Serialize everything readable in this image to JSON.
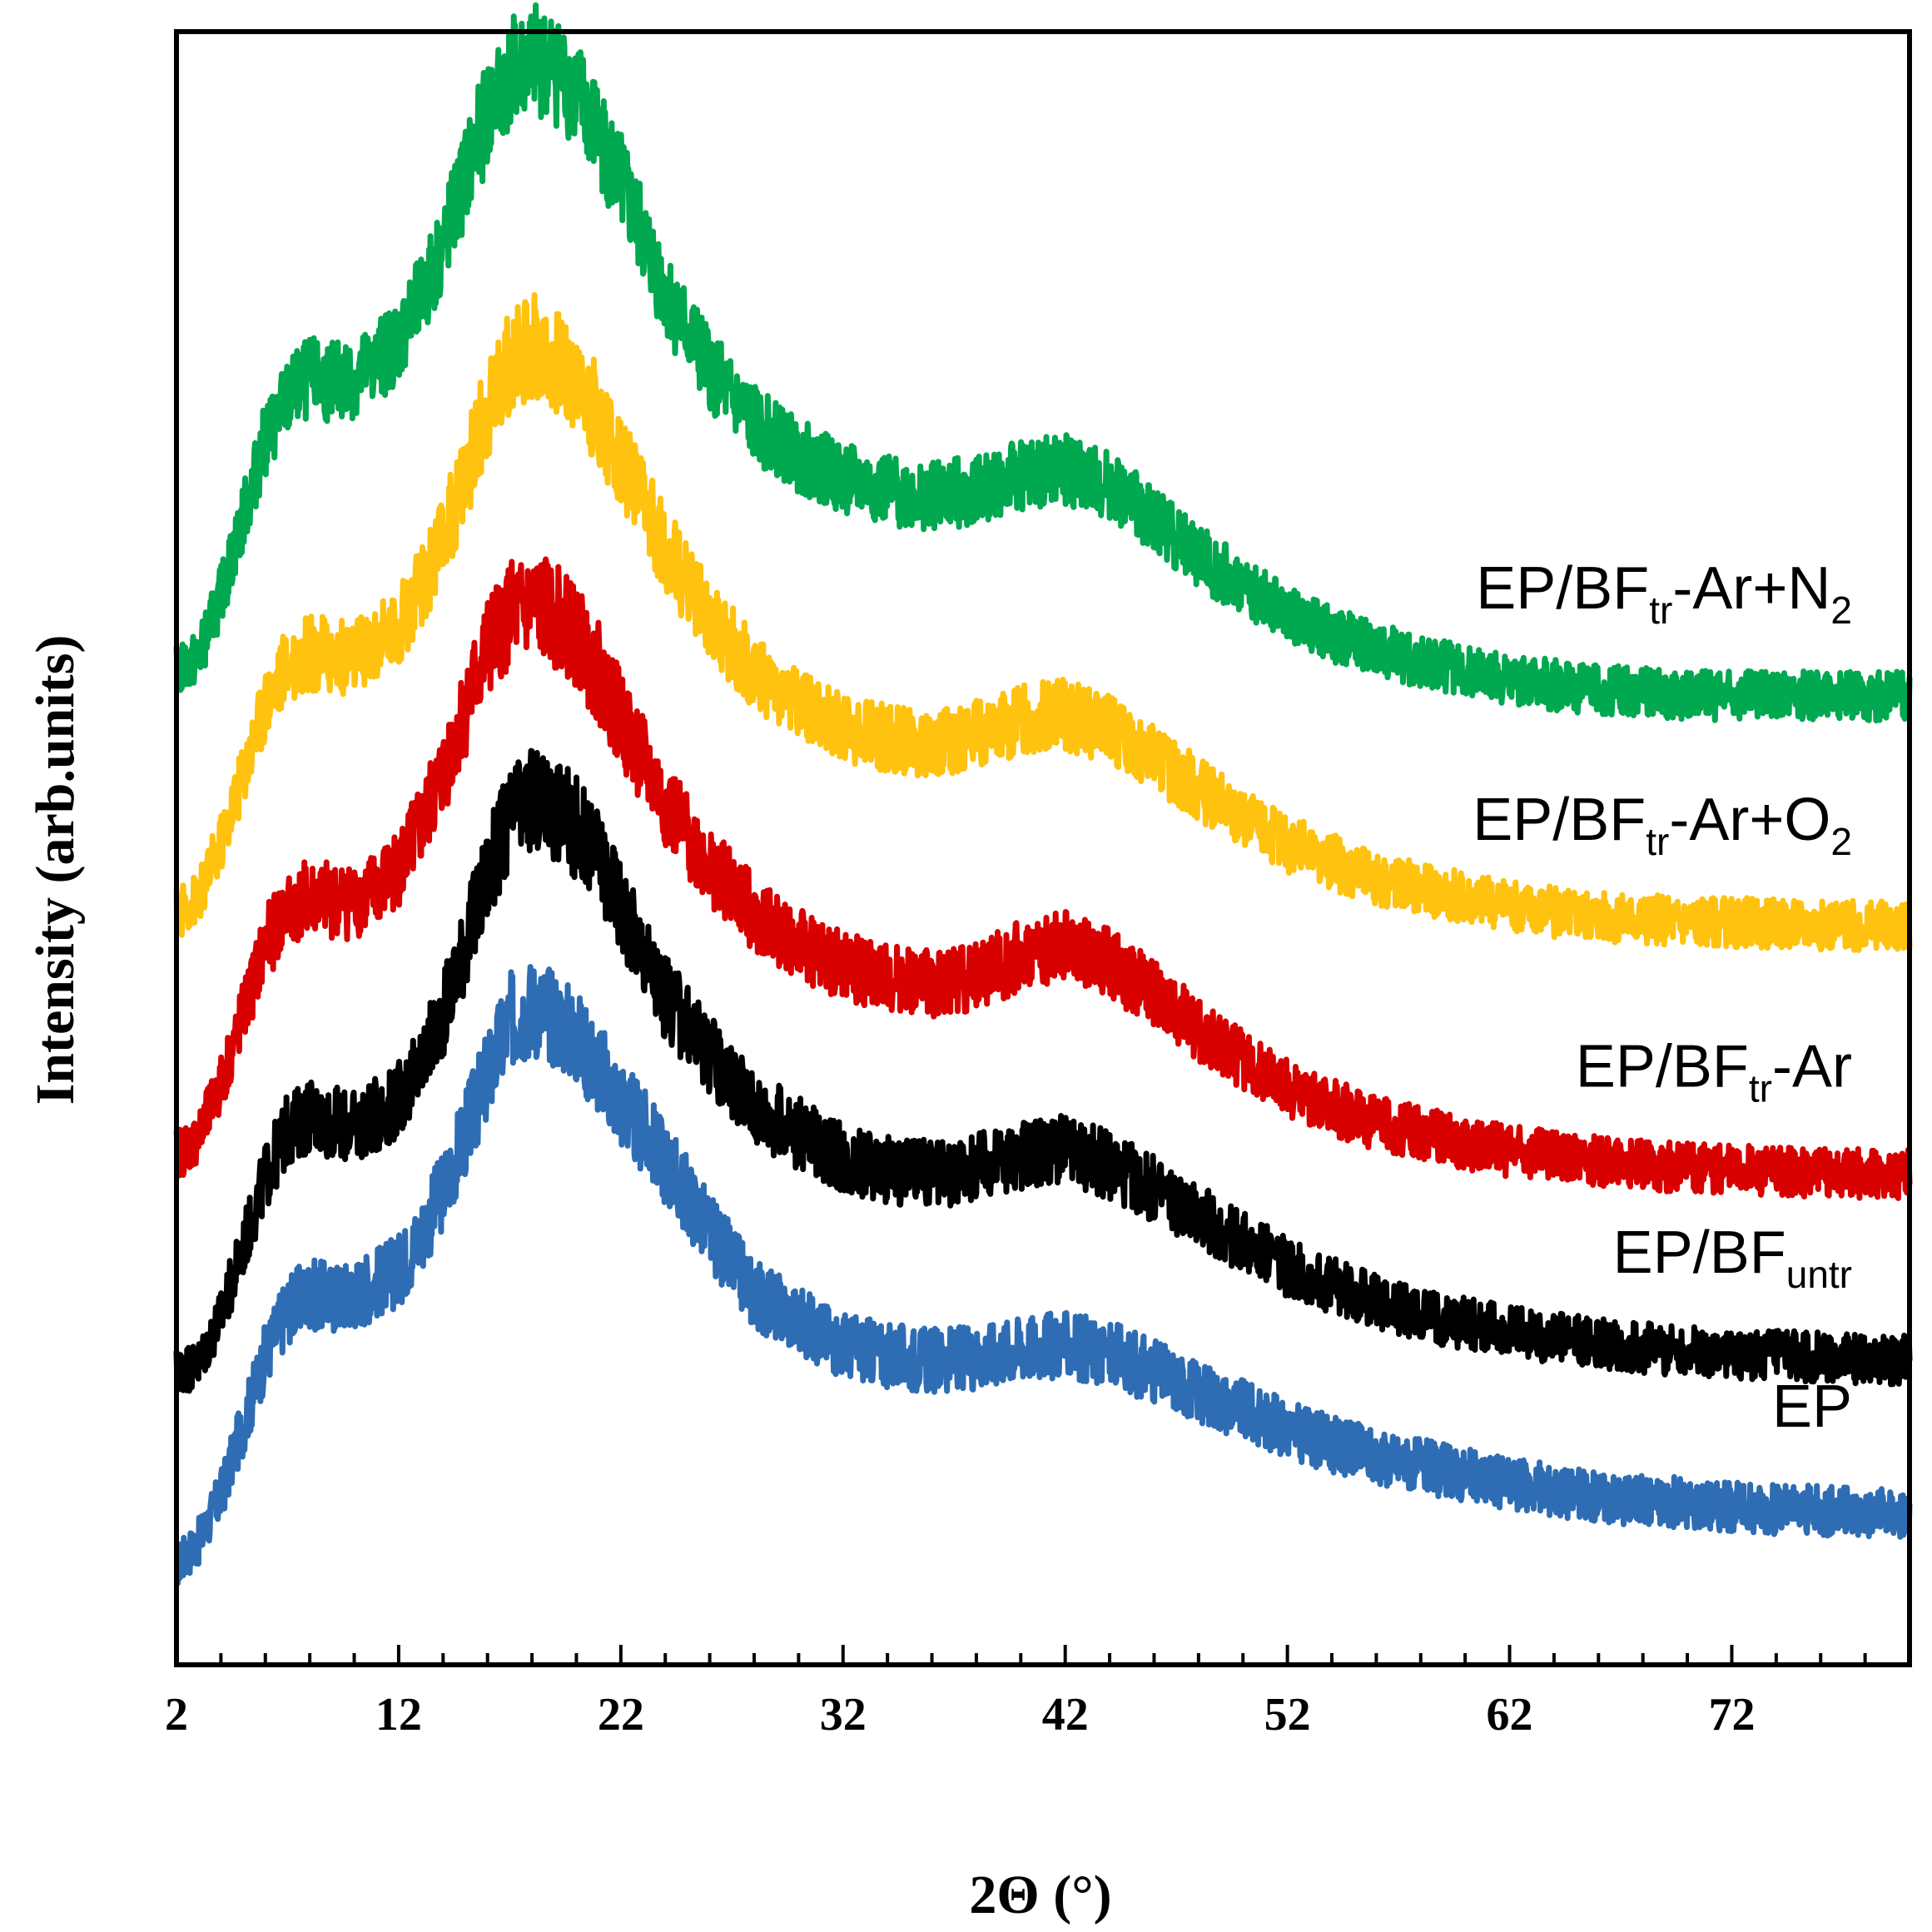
{
  "chart_data": {
    "type": "line",
    "title": "",
    "xlabel": "2Θ (°)",
    "ylabel": "Intensity (arb.units)",
    "xlim": [
      2,
      80
    ],
    "ylim": [
      0,
      1000
    ],
    "x_ticks": [
      2,
      12,
      22,
      32,
      42,
      52,
      62,
      72
    ],
    "x_tick_labels": [
      "2",
      "12",
      "22",
      "32",
      "42",
      "52",
      "62",
      "72"
    ],
    "y_ticks_shown": false,
    "series": [
      {
        "name": "EP",
        "label_main": "EP",
        "label_sub": "",
        "label_post": "",
        "label_sub2": "",
        "color": "#2e6db4",
        "x": [
          2,
          3,
          4,
          5,
          6,
          7,
          8,
          9,
          10,
          11,
          12,
          13,
          14,
          15,
          16,
          17,
          18,
          19,
          20,
          21,
          22,
          24,
          26,
          28,
          30,
          32,
          34,
          36,
          38,
          40,
          42,
          44,
          46,
          48,
          50,
          52,
          54,
          56,
          58,
          60,
          62,
          64,
          66,
          68,
          70,
          72,
          74,
          76,
          78,
          80
        ],
        "y": [
          40,
          55,
          85,
          130,
          175,
          205,
          215,
          212,
          215,
          222,
          230,
          252,
          282,
          318,
          355,
          390,
          400,
          393,
          380,
          360,
          338,
          300,
          255,
          215,
          198,
          182,
          175,
          172,
          174,
          180,
          182,
          176,
          165,
          152,
          140,
          128,
          118,
          110,
          104,
          98,
          93,
          88,
          84,
          82,
          80,
          78,
          76,
          75,
          74,
          73
        ]
      },
      {
        "name": "EP/BFuntr",
        "label_main": "EP/BF",
        "label_sub": "untr",
        "label_post": "",
        "label_sub2": "",
        "color": "#000000",
        "x": [
          2,
          3,
          4,
          5,
          6,
          7,
          8,
          9,
          10,
          11,
          12,
          13,
          14,
          15,
          16,
          17,
          18,
          19,
          20,
          21,
          22,
          24,
          26,
          28,
          30,
          32,
          34,
          36,
          38,
          40,
          42,
          44,
          46,
          48,
          50,
          52,
          54,
          56,
          58,
          60,
          62,
          64,
          66,
          68,
          70,
          72,
          74,
          76,
          78,
          80
        ],
        "y": [
          165,
          170,
          200,
          245,
          290,
          320,
          330,
          325,
          322,
          330,
          340,
          362,
          395,
          440,
          485,
          520,
          532,
          528,
          515,
          495,
          465,
          405,
          370,
          335,
          318,
          302,
          295,
          292,
          296,
          305,
          307,
          298,
          282,
          265,
          248,
          232,
          220,
          210,
          202,
          196,
          190,
          186,
          183,
          180,
          178,
          176,
          175,
          174,
          173,
          172
        ]
      },
      {
        "name": "EP/BFtr-Ar",
        "label_main": "EP/BF",
        "label_sub": "tr",
        "label_post": "-Ar",
        "label_sub2": "",
        "color": "#d90000",
        "x": [
          2,
          3,
          4,
          5,
          6,
          7,
          8,
          9,
          10,
          11,
          12,
          13,
          14,
          15,
          16,
          17,
          18,
          19,
          20,
          21,
          22,
          24,
          26,
          28,
          30,
          32,
          34,
          36,
          38,
          40,
          42,
          44,
          46,
          48,
          50,
          52,
          54,
          56,
          58,
          60,
          62,
          64,
          66,
          68,
          70,
          72,
          74,
          76,
          78,
          80
        ],
        "y": [
          305,
          315,
          350,
          395,
          440,
          462,
          470,
          468,
          468,
          475,
          490,
          515,
          550,
          592,
          630,
          652,
          658,
          652,
          638,
          615,
          585,
          530,
          490,
          460,
          440,
          425,
          418,
          415,
          420,
          432,
          438,
          428,
          408,
          385,
          365,
          348,
          335,
          325,
          318,
          312,
          307,
          303,
          300,
          298,
          296,
          295,
          294,
          293,
          292,
          292
        ]
      },
      {
        "name": "EP/BFtr-Ar+O2",
        "label_main": "EP/BF",
        "label_sub": "tr",
        "label_post": "-Ar+O",
        "label_sub2": "2",
        "color": "#ffc20e",
        "x": [
          2,
          3,
          4,
          5,
          6,
          7,
          8,
          9,
          10,
          11,
          12,
          13,
          14,
          15,
          16,
          17,
          18,
          19,
          20,
          21,
          22,
          24,
          26,
          28,
          30,
          32,
          34,
          36,
          38,
          40,
          42,
          44,
          46,
          48,
          50,
          52,
          54,
          56,
          58,
          60,
          62,
          64,
          66,
          68,
          70,
          72,
          74,
          76,
          78,
          80
        ],
        "y": [
          460,
          470,
          505,
          550,
          595,
          620,
          628,
          625,
          625,
          632,
          645,
          668,
          700,
          742,
          785,
          815,
          825,
          818,
          802,
          780,
          750,
          695,
          650,
          615,
          595,
          580,
          572,
          570,
          575,
          585,
          588,
          578,
          560,
          540,
          520,
          505,
          493,
          483,
          476,
          470,
          465,
          461,
          458,
          456,
          455,
          454,
          453,
          452,
          452,
          451
        ]
      },
      {
        "name": "EP/BFtr-Ar+N2",
        "label_main": "EP/BF",
        "label_sub": "tr",
        "label_post": "-Ar+N",
        "label_sub2": "2",
        "color": "#00a84f",
        "x": [
          2,
          3,
          4,
          5,
          6,
          7,
          8,
          9,
          10,
          11,
          12,
          13,
          14,
          15,
          16,
          17,
          18,
          19,
          20,
          21,
          22,
          24,
          26,
          28,
          30,
          32,
          34,
          36,
          38,
          40,
          42,
          44,
          46,
          48,
          50,
          52,
          54,
          56,
          58,
          60,
          62,
          64,
          66,
          68,
          70,
          72,
          74,
          76,
          78,
          80
        ],
        "y": [
          615,
          625,
          665,
          715,
          765,
          792,
          805,
          802,
          805,
          815,
          830,
          855,
          890,
          935,
          975,
          1000,
          1010,
          1005,
          988,
          962,
          930,
          860,
          810,
          775,
          755,
          740,
          732,
          728,
          733,
          742,
          745,
          735,
          715,
          690,
          670,
          652,
          640,
          630,
          622,
          616,
          611,
          607,
          604,
          602,
          601,
          600,
          600,
          600,
          600,
          600
        ]
      }
    ]
  }
}
